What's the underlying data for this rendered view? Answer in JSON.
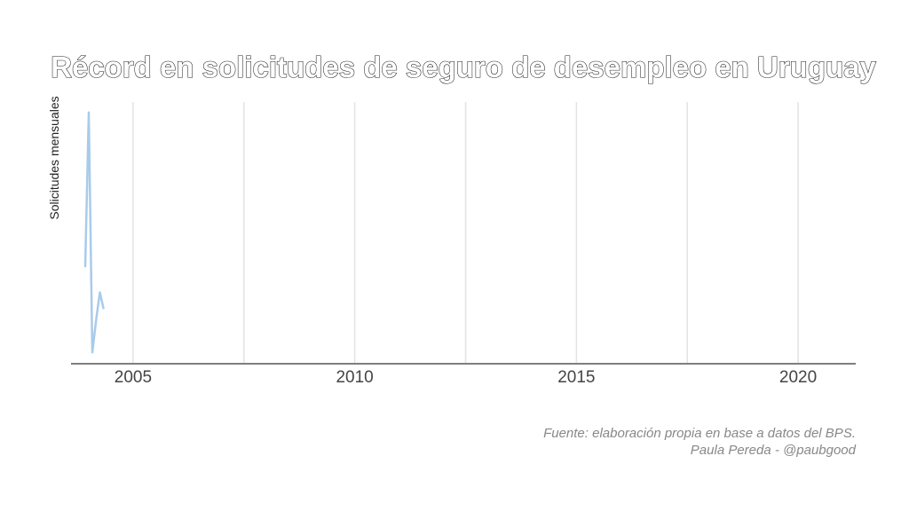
{
  "chart_data": {
    "type": "line",
    "title": "Récord en solicitudes de seguro de desempleo en Uruguay",
    "xlabel": "",
    "ylabel": "Solicitudes mensuales",
    "xlim": [
      2003.6,
      2021.3
    ],
    "ylim": [
      0,
      1
    ],
    "grid": true,
    "x_ticks": [
      2005,
      2007.5,
      2010,
      2012.5,
      2015,
      2017.5,
      2020
    ],
    "x_tick_labels": [
      {
        "value": 2005,
        "label": "2005"
      },
      {
        "value": 2010,
        "label": "2010"
      },
      {
        "value": 2015,
        "label": "2015"
      },
      {
        "value": 2020,
        "label": "2020"
      }
    ],
    "series": [
      {
        "x": [
          2003.92,
          2004.0,
          2004.08,
          2004.17,
          2004.25,
          2004.33
        ],
        "y": [
          0.37,
          0.96,
          0.04,
          0.17,
          0.27,
          0.21
        ],
        "color": "#a9cbea"
      }
    ],
    "caption": [
      "Fuente: elaboración propia en base a datos del BPS.",
      "Paula Pereda - @paubgood"
    ]
  }
}
